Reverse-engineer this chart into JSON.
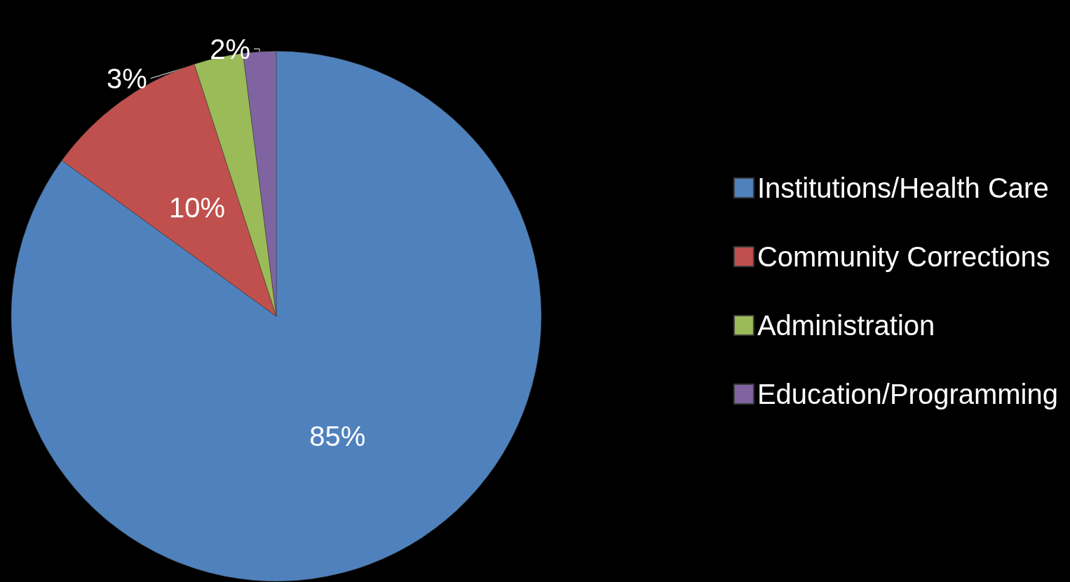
{
  "chart_data": {
    "type": "pie",
    "categories": [
      "Institutions/Health Care",
      "Community Corrections",
      "Administration",
      "Education/Programming"
    ],
    "values": [
      85,
      10,
      3,
      2
    ],
    "colors": [
      "#4f81bd",
      "#c0504d",
      "#9bbb59",
      "#8064a2"
    ],
    "value_labels": [
      "85%",
      "10%",
      "3%",
      "2%"
    ],
    "legend": "right"
  }
}
